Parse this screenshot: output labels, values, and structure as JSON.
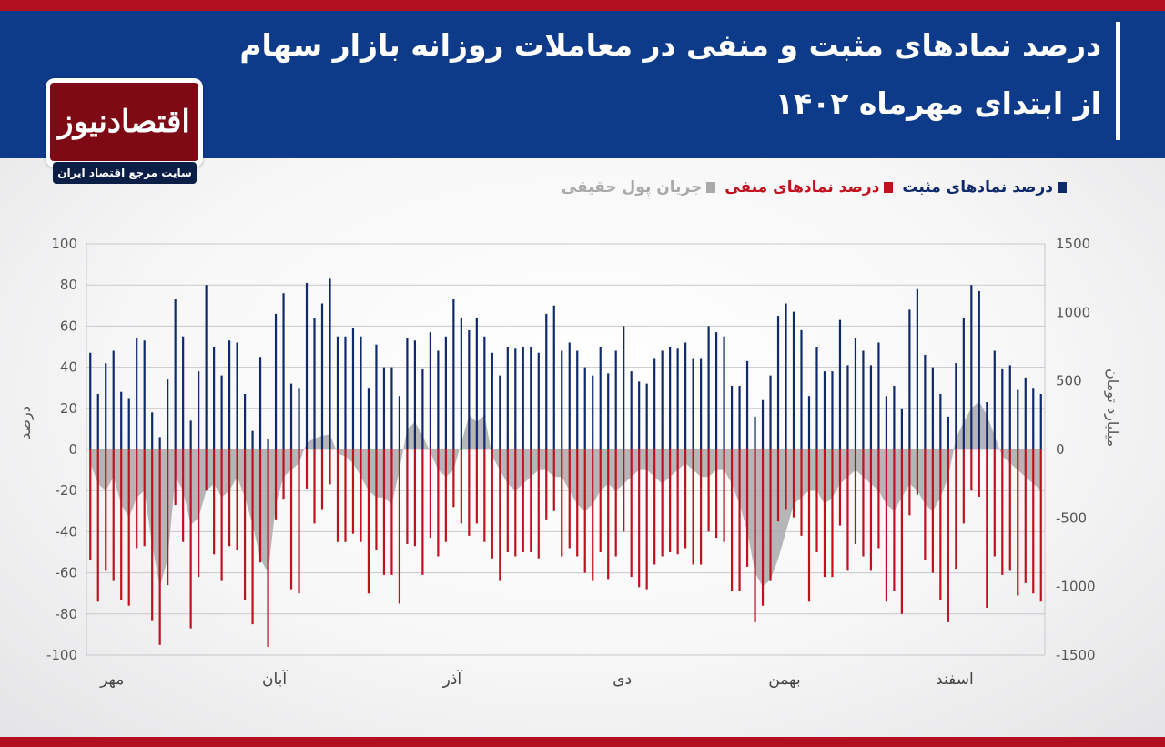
{
  "header": {
    "title_line1": "درصد نمادهای مثبت و منفی در معاملات روزانه بازار سهام",
    "title_line2": "از ابتدای مهرماه ۱۴۰۲"
  },
  "logo": {
    "name": "اقتصادنیوز",
    "tagline": "سایت مرجع اقتصاد ایران"
  },
  "colors": {
    "positive": "#0e2a6b",
    "negative": "#c0111f",
    "flow": "#a9a9ab",
    "brand_red": "#b01020",
    "brand_blue": "#0e3a8a"
  },
  "chart_data": {
    "type": "bar",
    "title": "",
    "ylabel": "درصد",
    "y2label": "میلیارد تومان",
    "ylim": [
      -100,
      100
    ],
    "y2lim": [
      -1500,
      1500
    ],
    "yticks": [
      "100",
      "80",
      "60",
      "40",
      "20",
      "0",
      "-20",
      "-40",
      "-60",
      "-80",
      "-100"
    ],
    "y2ticks": [
      "1500",
      "1000",
      "500",
      "0",
      "-500",
      "-1000",
      "-1500"
    ],
    "months": [
      "مهر",
      "آبان",
      "آذر",
      "دی",
      "بهمن",
      "اسفند"
    ],
    "month_start_index": [
      0,
      21,
      44,
      66,
      87,
      109
    ],
    "grid": true,
    "legend_position": "top",
    "series": [
      {
        "name": "درصد نمادهای مثبت",
        "color": "#0e2a6b",
        "values": [
          47,
          27,
          42,
          48,
          28,
          25,
          54,
          53,
          18,
          6,
          34,
          73,
          55,
          14,
          38,
          80,
          50,
          36,
          53,
          52,
          27,
          9,
          45,
          5,
          66,
          76,
          32,
          30,
          81,
          64,
          71,
          83,
          55,
          55,
          59,
          55,
          30,
          51,
          40,
          40,
          26,
          54,
          53,
          39,
          57,
          48,
          55,
          73,
          64,
          58,
          64,
          55,
          47,
          36,
          50,
          49,
          50,
          50,
          47,
          66,
          70,
          48,
          52,
          48,
          40,
          36,
          50,
          37,
          48,
          60,
          38,
          33,
          32,
          44,
          48,
          50,
          49,
          52,
          44,
          44,
          60,
          57,
          55,
          31,
          31,
          43,
          16,
          24,
          36,
          65,
          71,
          67,
          58,
          26,
          50,
          38,
          38,
          63,
          41,
          54,
          48,
          41,
          52,
          26,
          31,
          20,
          68,
          78,
          46,
          40,
          27,
          16,
          42,
          64,
          80,
          77,
          23,
          48,
          39,
          41,
          29,
          35,
          30,
          27
        ],
        "note": "estimated from gridlines"
      },
      {
        "name": "درصد نمادهای منفی",
        "color": "#c0111f",
        "values": [
          -54,
          -74,
          -59,
          -64,
          -73,
          -76,
          -48,
          -47,
          -83,
          -95,
          -66,
          -27,
          -45,
          -87,
          -62,
          -20,
          -51,
          -64,
          -47,
          -49,
          -73,
          -85,
          -55,
          -96,
          -34,
          -24,
          -68,
          -70,
          -19,
          -36,
          -29,
          -17,
          -45,
          -45,
          -41,
          -45,
          -70,
          -49,
          -61,
          -61,
          -75,
          -46,
          -47,
          -61,
          -43,
          -52,
          -45,
          -28,
          -36,
          -42,
          -36,
          -45,
          -53,
          -64,
          -50,
          -52,
          -50,
          -50,
          -53,
          -34,
          -30,
          -52,
          -48,
          -52,
          -60,
          -64,
          -50,
          -63,
          -52,
          -40,
          -62,
          -67,
          -68,
          -56,
          -52,
          -50,
          -51,
          -48,
          -56,
          -56,
          -40,
          -43,
          -45,
          -69,
          -69,
          -57,
          -84,
          -76,
          -64,
          -35,
          -29,
          -33,
          -42,
          -74,
          -50,
          -62,
          -62,
          -37,
          -59,
          -46,
          -52,
          -59,
          -48,
          -74,
          -69,
          -80,
          -32,
          -22,
          -54,
          -60,
          -73,
          -84,
          -58,
          -36,
          -20,
          -23,
          -77,
          -52,
          -61,
          -59,
          -71,
          -65,
          -70,
          -74
        ]
      },
      {
        "name": "جریان پول حقیقی",
        "color": "#a9a9ab",
        "axis": "right",
        "values": [
          -100,
          -250,
          -300,
          -200,
          -400,
          -500,
          -350,
          -300,
          -700,
          -1000,
          -800,
          -200,
          -300,
          -550,
          -500,
          -300,
          -250,
          -350,
          -300,
          -200,
          -350,
          -550,
          -800,
          -900,
          -400,
          -200,
          -150,
          -100,
          50,
          80,
          100,
          110,
          -30,
          -50,
          -100,
          -200,
          -300,
          -350,
          -350,
          -400,
          -150,
          150,
          200,
          100,
          -20,
          -150,
          -200,
          -150,
          50,
          250,
          200,
          250,
          -50,
          -150,
          -250,
          -300,
          -250,
          -200,
          -150,
          -150,
          -200,
          -200,
          -300,
          -400,
          -450,
          -400,
          -300,
          -250,
          -300,
          -250,
          -200,
          -150,
          -150,
          -200,
          -250,
          -200,
          -150,
          -100,
          -150,
          -200,
          -200,
          -150,
          -150,
          -250,
          -400,
          -600,
          -900,
          -1000,
          -950,
          -800,
          -600,
          -400,
          -350,
          -300,
          -300,
          -400,
          -350,
          -250,
          -200,
          -150,
          -200,
          -250,
          -300,
          -400,
          -450,
          -350,
          -250,
          -300,
          -400,
          -450,
          -350,
          -200,
          80,
          200,
          300,
          350,
          250,
          100,
          -50,
          -100,
          -150,
          -200,
          -250,
          -300
        ]
      }
    ]
  }
}
